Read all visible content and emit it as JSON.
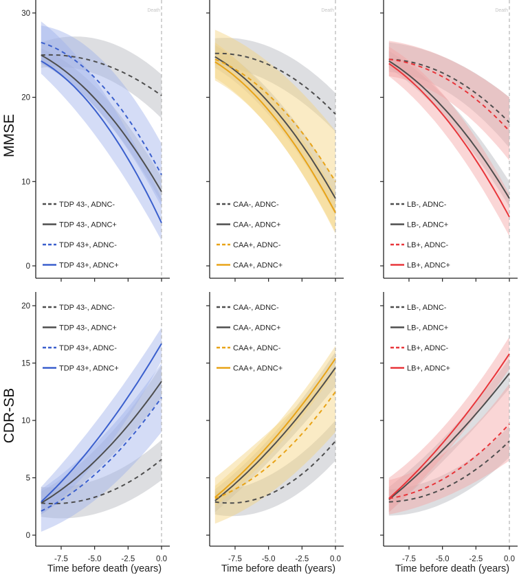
{
  "chart_data": {
    "type": "line",
    "x_label": "Time before death (years)",
    "x_ticks": [
      "-7.5",
      "-5.0",
      "-2.5",
      "0.0"
    ],
    "x_tick_values": [
      -7.5,
      -5.0,
      -2.5,
      0.0
    ],
    "xlim": [
      -9.4,
      0.5
    ],
    "x_points": [
      -9,
      -4.5,
      0
    ],
    "death_label": "Death",
    "rows": [
      {
        "ylabel": "MMSE",
        "ylim": [
          -1.5,
          31.5
        ],
        "y_ticks": [
          0,
          10,
          20,
          30
        ],
        "y_tick_labels": [
          "0",
          "10",
          "20",
          "30"
        ],
        "legend_position": "bottom-left",
        "show_death_label": true
      },
      {
        "ylabel": "CDR-SB",
        "ylim": [
          -1,
          21
        ],
        "y_ticks": [
          0,
          5,
          10,
          15,
          20
        ],
        "y_tick_labels": [
          "0",
          "5",
          "10",
          "15",
          "20"
        ],
        "legend_position": "top-left",
        "show_death_label": false
      }
    ],
    "columns": [
      {
        "accent": "#3a5fcd",
        "band": "#9fb2ea",
        "legend": [
          "TDP 43-, ADNC-",
          "TDP 43-, ADNC+",
          "TDP 43+, ADNC-",
          "TDP 43+, ADNC+"
        ]
      },
      {
        "accent": "#e8a317",
        "band": "#f3d27e",
        "legend": [
          "CAA-, ADNC-",
          "CAA-, ADNC+",
          "CAA+, ADNC-",
          "CAA+, ADNC+"
        ]
      },
      {
        "accent": "#e8353a",
        "band": "#f5a3a3",
        "legend": [
          "LB-, ADNC-",
          "LB-, ADNC+",
          "LB+, ADNC-",
          "LB+, ADNC+"
        ]
      }
    ],
    "reference_color": "#4d4d4d",
    "reference_band": "#b4b6bd",
    "panels": [
      {
        "row": 0,
        "col": 0,
        "series": [
          {
            "y": [
              25.0,
              24.0,
              20.2
            ],
            "lo": [
              23.5,
              22.5,
              17.5
            ],
            "hi": [
              26.5,
              26.8,
              22.7
            ]
          },
          {
            "y": [
              25.0,
              19.0,
              8.8
            ],
            "lo": [
              24.0,
              18.0,
              7.5
            ],
            "hi": [
              25.8,
              20.5,
              10.5
            ]
          },
          {
            "y": [
              26.5,
              21.5,
              10.8
            ],
            "lo": [
              24.0,
              18.0,
              7.0
            ],
            "hi": [
              28.5,
              24.5,
              14.5
            ]
          },
          {
            "y": [
              24.3,
              17.5,
              5.1
            ],
            "lo": [
              22.8,
              14.5,
              3.0
            ],
            "hi": [
              29.0,
              21.0,
              8.0
            ]
          }
        ]
      },
      {
        "row": 0,
        "col": 1,
        "series": [
          {
            "y": [
              25.2,
              23.5,
              18.0
            ],
            "lo": [
              23.8,
              21.5,
              15.9
            ],
            "hi": [
              27.0,
              25.7,
              20.5
            ]
          },
          {
            "y": [
              24.8,
              18.5,
              8.0
            ],
            "lo": [
              23.5,
              17.0,
              6.0
            ],
            "hi": [
              26.2,
              20.0,
              10.0
            ]
          },
          {
            "y": [
              24.5,
              19.5,
              10.0
            ],
            "lo": [
              22.3,
              15.5,
              4.0
            ],
            "hi": [
              28.0,
              23.5,
              16.0
            ]
          },
          {
            "y": [
              24.2,
              17.5,
              6.3
            ],
            "lo": [
              22.0,
              15.5,
              3.8
            ],
            "hi": [
              26.5,
              19.5,
              8.5
            ]
          }
        ]
      },
      {
        "row": 0,
        "col": 2,
        "series": [
          {
            "y": [
              24.5,
              22.5,
              17.0
            ],
            "lo": [
              23.0,
              20.5,
              14.0
            ],
            "hi": [
              26.5,
              24.5,
              20.0
            ]
          },
          {
            "y": [
              24.3,
              18.0,
              8.0
            ],
            "lo": [
              23.5,
              17.0,
              7.0
            ],
            "hi": [
              25.5,
              19.5,
              10.0
            ]
          },
          {
            "y": [
              24.5,
              22.0,
              16.0
            ],
            "lo": [
              22.5,
              19.5,
              12.5
            ],
            "hi": [
              26.7,
              24.5,
              20.0
            ]
          },
          {
            "y": [
              24.0,
              17.0,
              5.8
            ],
            "lo": [
              22.5,
              15.0,
              3.5
            ],
            "hi": [
              26.0,
              19.5,
              8.5
            ]
          }
        ]
      },
      {
        "row": 1,
        "col": 0,
        "series": [
          {
            "y": [
              2.8,
              3.5,
              6.6
            ],
            "lo": [
              1.6,
              2.0,
              4.8
            ],
            "hi": [
              4.2,
              5.0,
              8.3
            ]
          },
          {
            "y": [
              2.8,
              7.0,
              13.4
            ],
            "lo": [
              1.8,
              6.0,
              12.0
            ],
            "hi": [
              3.8,
              8.0,
              14.8
            ]
          },
          {
            "y": [
              2.1,
              5.8,
              12.0
            ],
            "lo": [
              0.3,
              3.5,
              9.0
            ],
            "hi": [
              4.0,
              8.5,
              15.0
            ]
          },
          {
            "y": [
              2.9,
              8.8,
              16.7
            ],
            "lo": [
              1.8,
              7.0,
              15.2
            ],
            "hi": [
              4.2,
              10.5,
              18.1
            ]
          }
        ]
      },
      {
        "row": 1,
        "col": 1,
        "series": [
          {
            "y": [
              2.9,
              3.8,
              8.2
            ],
            "lo": [
              1.8,
              2.5,
              6.5
            ],
            "hi": [
              3.8,
              5.5,
              10.0
            ]
          },
          {
            "y": [
              3.0,
              8.0,
              14.6
            ],
            "lo": [
              2.0,
              7.0,
              13.0
            ],
            "hi": [
              4.0,
              9.0,
              16.0
            ]
          },
          {
            "y": [
              3.2,
              6.5,
              12.5
            ],
            "lo": [
              1.0,
              4.0,
              9.0
            ],
            "hi": [
              5.0,
              9.5,
              14.5
            ]
          },
          {
            "y": [
              3.3,
              8.5,
              15.4
            ],
            "lo": [
              2.5,
              7.5,
              14.3
            ],
            "hi": [
              4.3,
              9.5,
              16.5
            ]
          }
        ]
      },
      {
        "row": 1,
        "col": 2,
        "series": [
          {
            "y": [
              2.9,
              4.3,
              8.2
            ],
            "lo": [
              1.7,
              3.0,
              6.8
            ],
            "hi": [
              4.0,
              5.5,
              9.5
            ]
          },
          {
            "y": [
              3.1,
              8.0,
              14.1
            ],
            "lo": [
              2.0,
              7.0,
              12.8
            ],
            "hi": [
              4.2,
              9.0,
              15.4
            ]
          },
          {
            "y": [
              3.2,
              5.2,
              9.7
            ],
            "lo": [
              1.8,
              3.5,
              6.5
            ],
            "hi": [
              4.8,
              7.5,
              13.2
            ]
          },
          {
            "y": [
              3.2,
              8.7,
              15.8
            ],
            "lo": [
              2.0,
              7.5,
              14.5
            ],
            "hi": [
              5.0,
              10.0,
              17.3
            ]
          }
        ]
      }
    ]
  }
}
